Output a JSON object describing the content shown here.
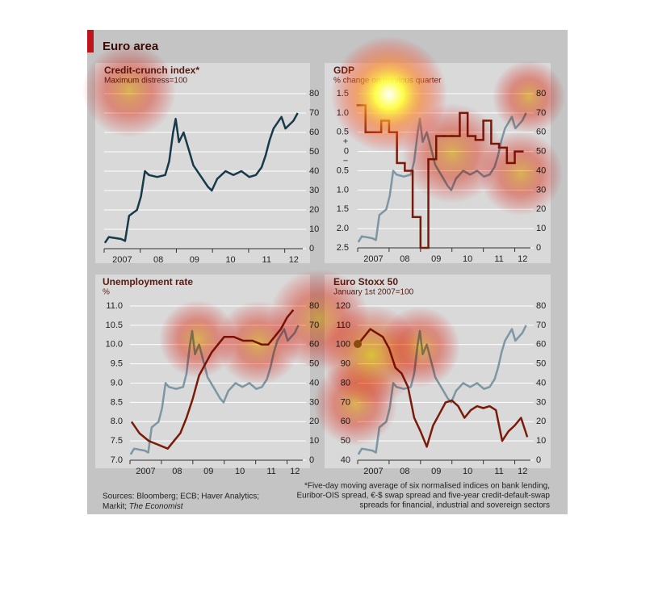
{
  "header": {
    "title": "Euro area"
  },
  "footer": {
    "sources": [
      "Sources: Bloomberg; ECB; Haver Analytics;",
      "Markit;"
    ],
    "sources_italic": "The Economist",
    "footnote": [
      "*Five-day moving average of six normalised indices on bank lending,",
      "Euribor-OIS spread, €-$ swap spread and five-year credit-default-swap",
      "spreads for financial, industrial and sovereign sectors"
    ]
  },
  "chart_data": [
    {
      "type": "line",
      "title": "Credit-crunch index*",
      "subtitle": "Maximum distress=100",
      "xlim": [
        2007,
        2012.5
      ],
      "xticks": [
        2007,
        {
          "value": 2008,
          "label": "08"
        },
        {
          "value": 2009,
          "label": "09"
        },
        {
          "value": 2010,
          "label": "10"
        },
        {
          "value": 2011,
          "label": "11"
        },
        {
          "value": 2012,
          "label": "12"
        }
      ],
      "ylim": [
        0,
        80
      ],
      "yticks": [
        0,
        10,
        20,
        30,
        40,
        50,
        60,
        70,
        80
      ],
      "y_axis_position": "right",
      "grid": true,
      "series": [
        {
          "color": "#173a4a",
          "x": [
            2007.02,
            2007.13,
            2007.47,
            2007.58,
            2007.69,
            2007.91,
            2008.02,
            2008.13,
            2008.24,
            2008.47,
            2008.69,
            2008.8,
            2008.91,
            2008.98,
            2009.07,
            2009.2,
            2009.36,
            2009.47,
            2009.69,
            2009.87,
            2009.98,
            2010.13,
            2010.36,
            2010.58,
            2010.8,
            2011.02,
            2011.2,
            2011.36,
            2011.47,
            2011.58,
            2011.69,
            2011.91,
            2012.02,
            2012.13,
            2012.24,
            2012.36
          ],
          "values": [
            3,
            6,
            5,
            4,
            17,
            20,
            27,
            40,
            38,
            37,
            38,
            45,
            60,
            67,
            55,
            60,
            50,
            43,
            37,
            32,
            30,
            36,
            40,
            38,
            40,
            37,
            38,
            42,
            48,
            56,
            62,
            68,
            62,
            64,
            66,
            70
          ]
        }
      ]
    },
    {
      "type": "line",
      "title": "GDP",
      "subtitle": "% change on previous quarter",
      "annotations": [
        "+",
        "−"
      ],
      "xlim": [
        2007,
        2012.5
      ],
      "xticks": [
        2007,
        {
          "value": 2008,
          "label": "08"
        },
        {
          "value": 2009,
          "label": "09"
        },
        {
          "value": 2010,
          "label": "10"
        },
        {
          "value": 2011,
          "label": "11"
        },
        {
          "value": 2012,
          "label": "12"
        }
      ],
      "ylim": [
        -2.5,
        1.5
      ],
      "yticks": [
        1.5,
        {
          "value": 1.0,
          "label": "1.0"
        },
        0.5,
        0,
        {
          "value": -0.5,
          "label": "0.5"
        },
        {
          "value": -1.0,
          "label": "1.0"
        },
        {
          "value": -1.5,
          "label": "1.5"
        },
        {
          "value": -2.0,
          "label": "2.0"
        },
        {
          "value": -2.5,
          "label": "2.5"
        }
      ],
      "y_axis_position": "left",
      "grid": true,
      "y2lim": [
        0,
        80
      ],
      "y2ticks": [
        80,
        70,
        60,
        50,
        40,
        30,
        20,
        10,
        0
      ],
      "series": [
        {
          "color": "#7d96a3",
          "axis": "y2",
          "x": [
            2007.02,
            2007.13,
            2007.47,
            2007.58,
            2007.69,
            2007.91,
            2008.02,
            2008.13,
            2008.24,
            2008.47,
            2008.69,
            2008.8,
            2008.91,
            2008.98,
            2009.07,
            2009.2,
            2009.36,
            2009.47,
            2009.69,
            2009.87,
            2009.98,
            2010.13,
            2010.36,
            2010.58,
            2010.8,
            2011.02,
            2011.2,
            2011.36,
            2011.47,
            2011.58,
            2011.69,
            2011.91,
            2012.02,
            2012.13,
            2012.24,
            2012.36
          ],
          "values": [
            3,
            6,
            5,
            4,
            17,
            20,
            27,
            40,
            38,
            37,
            38,
            45,
            60,
            67,
            55,
            60,
            50,
            43,
            37,
            32,
            30,
            36,
            40,
            38,
            40,
            37,
            38,
            42,
            48,
            56,
            62,
            68,
            62,
            64,
            66,
            70
          ]
        },
        {
          "color": "#7a1a08",
          "step": true,
          "x": [
            2007,
            2007.25,
            2007.5,
            2007.75,
            2008,
            2008.25,
            2008.5,
            2008.75,
            2009,
            2009.25,
            2009.5,
            2009.75,
            2010,
            2010.25,
            2010.5,
            2010.75,
            2011,
            2011.25,
            2011.5,
            2011.75,
            2012
          ],
          "values": [
            1.2,
            0.5,
            0.5,
            0.8,
            0.5,
            -0.3,
            -0.5,
            -1.7,
            -2.5,
            -0.2,
            0.4,
            0.4,
            0.4,
            1.0,
            0.4,
            0.3,
            0.8,
            0.2,
            0.1,
            -0.3,
            0.0
          ]
        }
      ]
    },
    {
      "type": "line",
      "title": "Unemployment rate",
      "subtitle": "%",
      "xlim": [
        2007,
        2012.5
      ],
      "xticks": [
        2007,
        {
          "value": 2008,
          "label": "08"
        },
        {
          "value": 2009,
          "label": "09"
        },
        {
          "value": 2010,
          "label": "10"
        },
        {
          "value": 2011,
          "label": "11"
        },
        {
          "value": 2012,
          "label": "12"
        }
      ],
      "ylim": [
        7.0,
        11.0
      ],
      "yticks": [
        {
          "value": 11.0,
          "label": "11.0"
        },
        10.5,
        {
          "value": 10.0,
          "label": "10.0"
        },
        9.5,
        {
          "value": 9.0,
          "label": "9.0"
        },
        8.5,
        {
          "value": 8.0,
          "label": "8.0"
        },
        7.5,
        {
          "value": 7.0,
          "label": "7.0"
        }
      ],
      "y_axis_position": "left",
      "grid": true,
      "y2lim": [
        0,
        80
      ],
      "y2ticks": [
        80,
        70,
        60,
        50,
        40,
        30,
        20,
        10,
        0
      ],
      "series": [
        {
          "color": "#7d96a3",
          "axis": "y2",
          "x": [
            2007.02,
            2007.13,
            2007.47,
            2007.58,
            2007.69,
            2007.91,
            2008.02,
            2008.13,
            2008.24,
            2008.47,
            2008.69,
            2008.8,
            2008.91,
            2008.98,
            2009.07,
            2009.2,
            2009.36,
            2009.47,
            2009.69,
            2009.87,
            2009.98,
            2010.13,
            2010.36,
            2010.58,
            2010.8,
            2011.02,
            2011.2,
            2011.36,
            2011.47,
            2011.58,
            2011.69,
            2011.91,
            2012.02,
            2012.13,
            2012.24,
            2012.36
          ],
          "values": [
            3,
            6,
            5,
            4,
            17,
            20,
            27,
            40,
            38,
            37,
            38,
            45,
            60,
            67,
            55,
            60,
            50,
            43,
            37,
            32,
            30,
            36,
            40,
            38,
            40,
            37,
            38,
            42,
            48,
            56,
            62,
            68,
            62,
            64,
            66,
            70
          ]
        },
        {
          "color": "#7a1a08",
          "x": [
            2007.05,
            2007.3,
            2007.6,
            2007.9,
            2008.2,
            2008.4,
            2008.6,
            2008.8,
            2009.0,
            2009.2,
            2009.4,
            2009.6,
            2009.8,
            2010.0,
            2010.3,
            2010.6,
            2010.9,
            2011.2,
            2011.4,
            2011.6,
            2011.8,
            2012.0,
            2012.2
          ],
          "values": [
            8.0,
            7.7,
            7.5,
            7.4,
            7.3,
            7.5,
            7.7,
            8.1,
            8.6,
            9.2,
            9.5,
            9.8,
            10.0,
            10.2,
            10.2,
            10.1,
            10.1,
            10.0,
            10.0,
            10.2,
            10.4,
            10.7,
            10.9
          ]
        }
      ]
    },
    {
      "type": "line",
      "title": "Euro Stoxx 50",
      "subtitle": "January 1st 2007=100",
      "xlim": [
        2007,
        2012.5
      ],
      "xticks": [
        2007,
        {
          "value": 2008,
          "label": "08"
        },
        {
          "value": 2009,
          "label": "09"
        },
        {
          "value": 2010,
          "label": "10"
        },
        {
          "value": 2011,
          "label": "11"
        },
        {
          "value": 2012,
          "label": "12"
        }
      ],
      "ylim": [
        40,
        120
      ],
      "yticks": [
        120,
        110,
        100,
        90,
        80,
        70,
        60,
        50,
        40
      ],
      "y_axis_position": "left",
      "grid": true,
      "y2lim": [
        0,
        80
      ],
      "y2ticks": [
        80,
        70,
        60,
        50,
        40,
        30,
        20,
        10,
        0
      ],
      "series": [
        {
          "color": "#7d96a3",
          "axis": "y2",
          "x": [
            2007.02,
            2007.13,
            2007.47,
            2007.58,
            2007.69,
            2007.91,
            2008.02,
            2008.13,
            2008.24,
            2008.47,
            2008.69,
            2008.8,
            2008.91,
            2008.98,
            2009.07,
            2009.2,
            2009.36,
            2009.47,
            2009.69,
            2009.87,
            2009.98,
            2010.13,
            2010.36,
            2010.58,
            2010.8,
            2011.02,
            2011.2,
            2011.36,
            2011.47,
            2011.58,
            2011.69,
            2011.91,
            2012.02,
            2012.13,
            2012.24,
            2012.36
          ],
          "values": [
            3,
            6,
            5,
            4,
            17,
            20,
            27,
            40,
            38,
            37,
            38,
            45,
            60,
            67,
            55,
            60,
            50,
            43,
            37,
            32,
            30,
            36,
            40,
            38,
            40,
            37,
            38,
            42,
            48,
            56,
            62,
            68,
            62,
            64,
            66,
            70
          ]
        },
        {
          "color": "#7a1a08",
          "x": [
            2007.0,
            2007.2,
            2007.4,
            2007.6,
            2007.8,
            2008.0,
            2008.2,
            2008.4,
            2008.6,
            2008.8,
            2009.0,
            2009.2,
            2009.4,
            2009.6,
            2009.8,
            2010.0,
            2010.2,
            2010.4,
            2010.6,
            2010.8,
            2011.0,
            2011.2,
            2011.4,
            2011.6,
            2011.8,
            2012.0,
            2012.2,
            2012.4
          ],
          "values": [
            100,
            104,
            108,
            106,
            104,
            98,
            88,
            85,
            78,
            62,
            55,
            47,
            58,
            64,
            70,
            71,
            68,
            62,
            66,
            68,
            67,
            68,
            66,
            50,
            55,
            58,
            62,
            52
          ]
        }
      ]
    }
  ]
}
